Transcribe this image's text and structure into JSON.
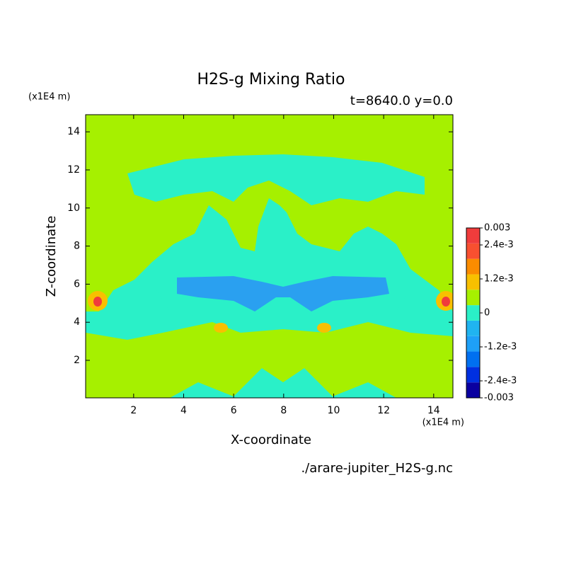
{
  "chart_data": {
    "type": "contour",
    "title": "H2S-g Mixing Ratio",
    "subtitle": "t=8640.0 y=0.0",
    "y_unit": "(x1E4 m)",
    "x_unit": "(x1E4 m)",
    "xlabel": "X-coordinate",
    "ylabel": "Z-coordinate",
    "footer": "./arare-jupiter_H2S-g.nc",
    "xlim": [
      0.08,
      14.77
    ],
    "ylim": [
      0.03,
      14.9
    ],
    "xticks": [
      2,
      4,
      6,
      8,
      10,
      12,
      14
    ],
    "yticks": [
      2,
      4,
      6,
      8,
      10,
      12,
      14
    ],
    "colorbar": {
      "lim": [
        -0.003,
        0.003
      ],
      "ticks": [
        {
          "value": -0.003,
          "label": "-0.003"
        },
        {
          "value": -0.0024,
          "label": "-2.4e-3"
        },
        {
          "value": -0.0012,
          "label": "-1.2e-3"
        },
        0,
        {
          "value": 0.0012,
          "label": "1.2e-3"
        },
        {
          "value": 0.0024,
          "label": "2.4e-3"
        },
        {
          "value": 0.003,
          "label": "0.003"
        }
      ],
      "colors": [
        "#0a00a0",
        "#0030e0",
        "#0070f0",
        "#1ea0f8",
        "#20b4f0",
        "#2af0c8",
        "#a6f000",
        "#f8c000",
        "#fa8c00",
        "#f85030",
        "#f03c3c"
      ]
    }
  }
}
